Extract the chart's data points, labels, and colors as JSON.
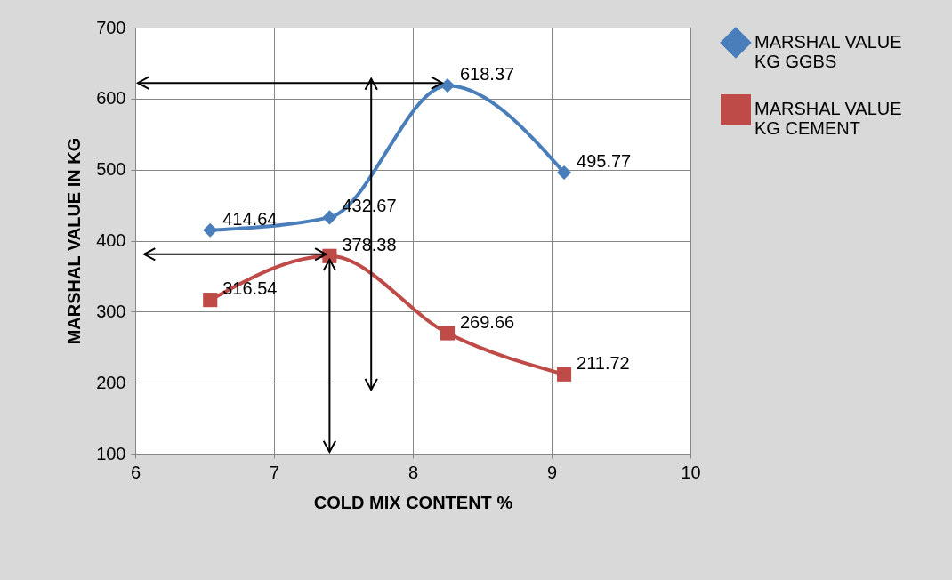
{
  "chart_data": {
    "type": "line",
    "xlabel": "COLD MIX CONTENT %",
    "ylabel": "MARSHAL VALUE IN KG",
    "x": [
      6.54,
      7.4,
      8.25,
      9.09
    ],
    "series": [
      {
        "name": "MARSHAL VALUE KG GGBS",
        "color": "#4a7ebb",
        "marker": "diamond",
        "values": [
          414.64,
          432.67,
          618.37,
          495.77
        ]
      },
      {
        "name": "MARSHAL VALUE KG CEMENT",
        "color": "#be4b48",
        "marker": "square",
        "values": [
          316.54,
          378.38,
          269.66,
          211.72
        ]
      }
    ],
    "xlim": [
      6,
      10
    ],
    "xticks": [
      6,
      7,
      8,
      9,
      10
    ],
    "ylim": [
      100,
      700
    ],
    "yticks": [
      100,
      200,
      300,
      400,
      500,
      600,
      700
    ],
    "ref_lines": [
      {
        "axis": "x",
        "value": 7.7
      }
    ],
    "grid": true,
    "legend": "right",
    "data_labels": true
  }
}
